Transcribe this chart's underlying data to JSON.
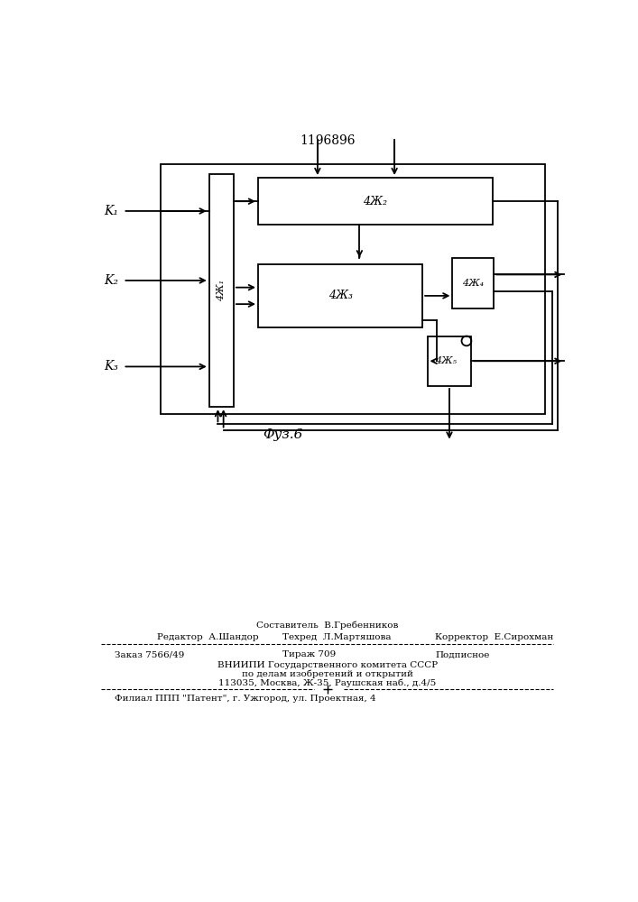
{
  "title_number": "1196896",
  "fig_label": "Φуз.6",
  "bg_color": "#ffffff",
  "line_color": "#000000",
  "labels": {
    "K1": "K₁",
    "K2": "K₂",
    "K3": "K₃",
    "b1": "4Ж₁",
    "b2": "4Ж₂",
    "b3": "4Ж₃",
    "b4": "4Ж₄",
    "b5": "4Ж₅"
  },
  "footer": {
    "line1": "Составитель  В.Гребенников",
    "line2_left": "Редактор  А.Шандор",
    "line2_mid": "Техред  Л.Мартяшова",
    "line2_right": "Корректор  Е.Сирохман",
    "line3_left": "Заказ 7566/49",
    "line3_mid": "Тираж 709",
    "line3_right": "Подписное",
    "line4": "ВНИИПИ Государственного комитета СССР",
    "line5": "по делам изобретений и открытий",
    "line6": "113035, Москва, Ж-35, Раушская наб., д.4/5",
    "line7": "Филиал ППП \"Патент\", г. Ужгород, ул. Проектная, 4"
  }
}
